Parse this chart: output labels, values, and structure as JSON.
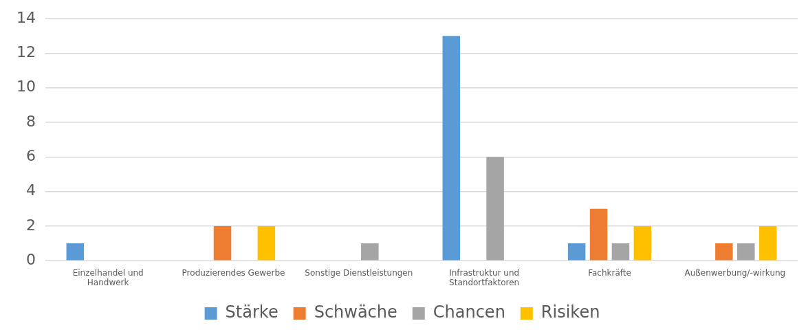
{
  "chart_data": {
    "type": "bar",
    "categories": [
      "Einzelhandel und Handwerk",
      "Produzierendes Gewerbe",
      "Sonstige Dienstleistungen",
      "Infrastruktur und Standortfaktoren",
      "Fachkräfte",
      "Außenwerbung/-wirkung"
    ],
    "series": [
      {
        "name": "Stärke",
        "color": "#5b9bd5",
        "values": [
          1,
          0,
          0,
          13,
          1,
          0
        ]
      },
      {
        "name": "Schwäche",
        "color": "#ed7d31",
        "values": [
          0,
          2,
          0,
          0,
          3,
          1
        ]
      },
      {
        "name": "Chancen",
        "color": "#a5a5a5",
        "values": [
          0,
          0,
          1,
          6,
          1,
          1
        ]
      },
      {
        "name": "Risiken",
        "color": "#ffc000",
        "values": [
          0,
          2,
          0,
          0,
          2,
          2
        ]
      }
    ],
    "ylim": [
      0,
      14
    ],
    "yticks": [
      0,
      2,
      4,
      6,
      8,
      10,
      12,
      14
    ],
    "grid": "y",
    "legend": "bottom"
  }
}
